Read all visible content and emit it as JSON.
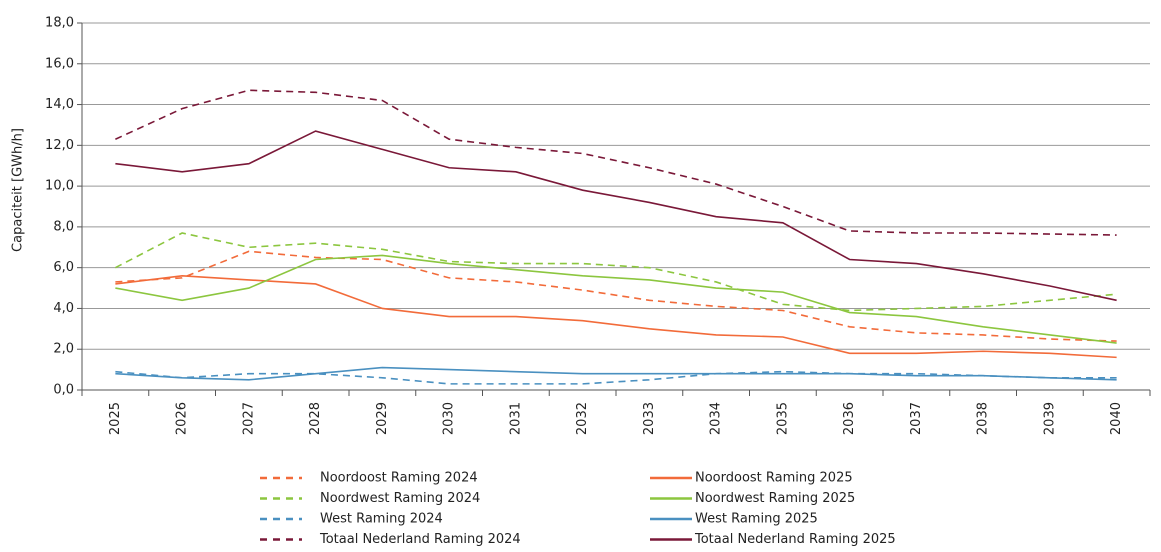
{
  "chart_data": {
    "type": "line",
    "y_label": "Capaciteit [GWh/h]",
    "categories": [
      "2025",
      "2026",
      "2027",
      "2028",
      "2029",
      "2030",
      "2031",
      "2032",
      "2033",
      "2034",
      "2035",
      "2036",
      "2037",
      "2038",
      "2039",
      "2040"
    ],
    "ylim": [
      0,
      18
    ],
    "yticks": [
      {
        "value": 0,
        "label": "0,0"
      },
      {
        "value": 2,
        "label": "2,0"
      },
      {
        "value": 4,
        "label": "4,0"
      },
      {
        "value": 6,
        "label": "6,0"
      },
      {
        "value": 8,
        "label": "8,0"
      },
      {
        "value": 10,
        "label": "10,0"
      },
      {
        "value": 12,
        "label": "12,0"
      },
      {
        "value": 14,
        "label": "14,0"
      },
      {
        "value": 16,
        "label": "16,0"
      },
      {
        "value": 18,
        "label": "18,0"
      }
    ],
    "grid": true,
    "series": [
      {
        "name": "Noordoost Raming 2024",
        "color": "#f26b3a",
        "dashed": true,
        "values": [
          5.3,
          5.5,
          6.8,
          6.5,
          6.4,
          5.5,
          5.3,
          4.9,
          4.4,
          4.1,
          3.9,
          3.1,
          2.8,
          2.7,
          2.5,
          2.4
        ]
      },
      {
        "name": "Noordoost Raming 2025",
        "color": "#f26b3a",
        "dashed": false,
        "values": [
          5.2,
          5.6,
          5.4,
          5.2,
          4.0,
          3.6,
          3.6,
          3.4,
          3.0,
          2.7,
          2.6,
          1.8,
          1.8,
          1.9,
          1.8,
          1.6
        ]
      },
      {
        "name": "Noordwest Raming 2024",
        "color": "#8cc63f",
        "dashed": true,
        "values": [
          6.0,
          7.7,
          7.0,
          7.2,
          6.9,
          6.3,
          6.2,
          6.2,
          6.0,
          5.3,
          4.2,
          3.9,
          4.0,
          4.1,
          4.4,
          4.7
        ]
      },
      {
        "name": "Noordwest Raming 2025",
        "color": "#8cc63f",
        "dashed": false,
        "values": [
          5.0,
          4.4,
          5.0,
          6.4,
          6.6,
          6.2,
          5.9,
          5.6,
          5.4,
          5.0,
          4.8,
          3.8,
          3.6,
          3.1,
          2.7,
          2.3
        ]
      },
      {
        "name": "West Raming 2024",
        "color": "#4a90c0",
        "dashed": true,
        "values": [
          0.9,
          0.6,
          0.8,
          0.8,
          0.6,
          0.3,
          0.3,
          0.3,
          0.5,
          0.8,
          0.9,
          0.8,
          0.8,
          0.7,
          0.6,
          0.6
        ]
      },
      {
        "name": "West Raming 2025",
        "color": "#4a90c0",
        "dashed": false,
        "values": [
          0.8,
          0.6,
          0.5,
          0.8,
          1.1,
          1.0,
          0.9,
          0.8,
          0.8,
          0.8,
          0.8,
          0.8,
          0.7,
          0.7,
          0.6,
          0.5
        ]
      },
      {
        "name": "Totaal Nederland Raming 2024",
        "color": "#7a1838",
        "dashed": true,
        "values": [
          12.3,
          13.8,
          14.7,
          14.6,
          14.2,
          12.3,
          11.9,
          11.6,
          10.9,
          10.1,
          9.0,
          7.8,
          7.7,
          7.7,
          7.65,
          7.6
        ]
      },
      {
        "name": "Totaal Nederland Raming 2025",
        "color": "#7a1838",
        "dashed": false,
        "values": [
          11.1,
          10.7,
          11.1,
          12.7,
          11.8,
          10.9,
          10.7,
          9.8,
          9.2,
          8.5,
          8.2,
          6.4,
          6.2,
          5.7,
          5.1,
          4.4
        ]
      }
    ]
  }
}
